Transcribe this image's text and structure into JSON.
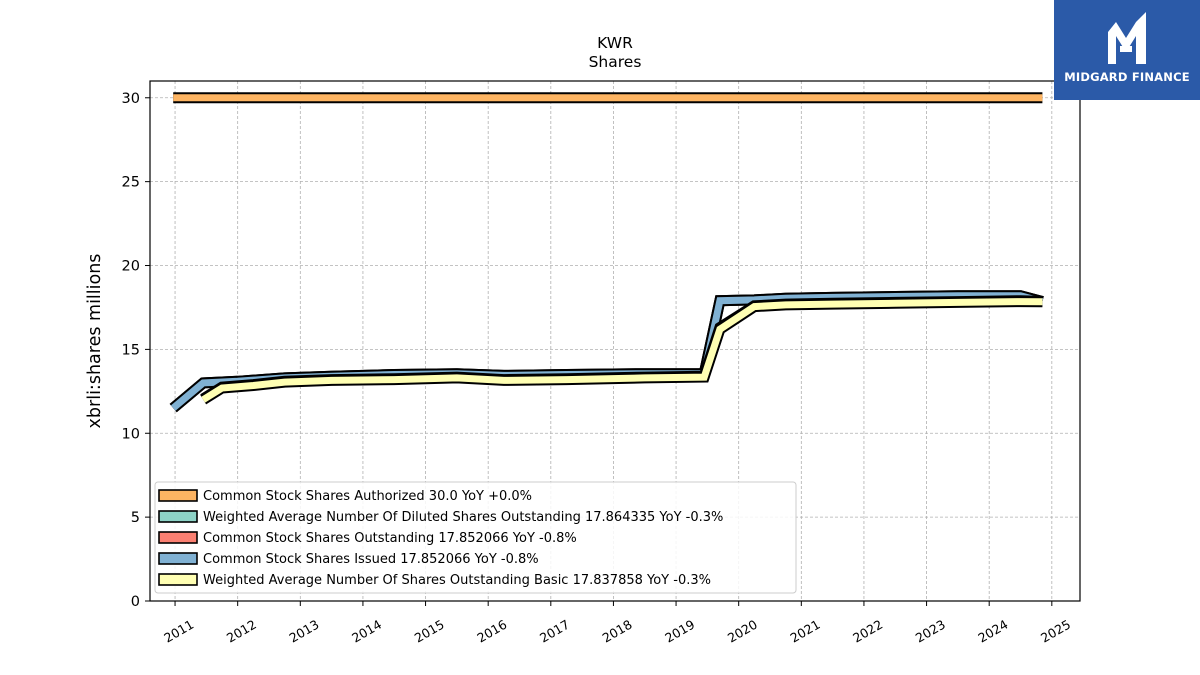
{
  "chart_data": {
    "type": "area",
    "title": "KWR",
    "subtitle": "Shares",
    "xlabel": "",
    "ylabel": "xbrli:shares millions",
    "ylim": [
      0,
      31
    ],
    "xlim": [
      2010.6,
      2025.45
    ],
    "yticks": [
      0,
      5,
      10,
      15,
      20,
      25,
      30
    ],
    "xticks": [
      "2011",
      "2012",
      "2013",
      "2014",
      "2015",
      "2016",
      "2017",
      "2018",
      "2019",
      "2020",
      "2021",
      "2022",
      "2023",
      "2024",
      "2025"
    ],
    "grid": true,
    "legend_position": "lower-left",
    "series": [
      {
        "name": "Common Stock Shares Authorized",
        "legend": "Common Stock Shares Authorized  30.0 YoY +0.0%",
        "color": "#fdb462",
        "x": [
          2010.97,
          2024.85
        ],
        "y": [
          30.0,
          30.0
        ]
      },
      {
        "name": "Weighted Average Number Of Diluted Shares Outstanding",
        "legend": "Weighted Average Number Of Diluted Shares Outstanding  17.864335 YoY -0.3%",
        "color": "#8dd3c7",
        "x": [
          2011.45,
          2011.75,
          2012.25,
          2012.75,
          2013.5,
          2014.5,
          2015.5,
          2016.25,
          2017.25,
          2018.5,
          2019.45,
          2019.7,
          2020.25,
          2020.75,
          2021.5,
          2022.5,
          2023.5,
          2024.5,
          2024.85
        ],
        "y": [
          12.05,
          12.75,
          12.9,
          13.1,
          13.2,
          13.25,
          13.35,
          13.2,
          13.25,
          13.35,
          13.4,
          16.3,
          17.6,
          17.7,
          17.75,
          17.8,
          17.85,
          17.9,
          17.86
        ]
      },
      {
        "name": "Common Stock Shares Outstanding",
        "legend": "Common Stock Shares Outstanding  17.852066 YoY -0.8%",
        "color": "#fb8072",
        "x": [
          2010.97,
          2011.45,
          2012.0,
          2012.75,
          2013.5,
          2014.5,
          2015.5,
          2016.25,
          2017.25,
          2018.5,
          2019.45,
          2019.7,
          2020.25,
          2020.75,
          2021.5,
          2022.5,
          2023.5,
          2024.5,
          2024.85
        ],
        "y": [
          11.5,
          13.0,
          13.1,
          13.3,
          13.4,
          13.5,
          13.55,
          13.45,
          13.5,
          13.55,
          13.55,
          17.9,
          17.95,
          18.05,
          18.1,
          18.15,
          18.2,
          18.2,
          17.85
        ]
      },
      {
        "name": "Common Stock Shares Issued",
        "legend": "Common Stock Shares Issued  17.852066 YoY -0.8%",
        "color": "#80b1d3",
        "x": [
          2010.97,
          2011.45,
          2012.0,
          2012.75,
          2013.5,
          2014.5,
          2015.5,
          2016.25,
          2017.25,
          2018.5,
          2019.45,
          2019.7,
          2020.25,
          2020.75,
          2021.5,
          2022.5,
          2023.5,
          2024.5,
          2024.85
        ],
        "y": [
          11.5,
          13.0,
          13.1,
          13.3,
          13.4,
          13.5,
          13.55,
          13.45,
          13.5,
          13.55,
          13.55,
          17.9,
          17.95,
          18.05,
          18.1,
          18.15,
          18.2,
          18.2,
          17.85
        ]
      },
      {
        "name": "Weighted Average Number Of Shares Outstanding Basic",
        "legend": "Weighted Average Number Of Shares Outstanding Basic  17.837858 YoY -0.3%",
        "color": "#ffffb3",
        "x": [
          2011.45,
          2011.75,
          2012.25,
          2012.75,
          2013.5,
          2014.5,
          2015.5,
          2016.25,
          2017.25,
          2018.5,
          2019.45,
          2019.7,
          2020.25,
          2020.75,
          2021.5,
          2022.5,
          2023.5,
          2024.5,
          2024.85
        ],
        "y": [
          12.0,
          12.7,
          12.85,
          13.05,
          13.15,
          13.2,
          13.3,
          13.15,
          13.2,
          13.3,
          13.35,
          16.2,
          17.55,
          17.65,
          17.7,
          17.75,
          17.8,
          17.85,
          17.84
        ]
      }
    ]
  },
  "logo": {
    "text": "MIDGARD FINANCE",
    "color": "#2b5aa8"
  }
}
